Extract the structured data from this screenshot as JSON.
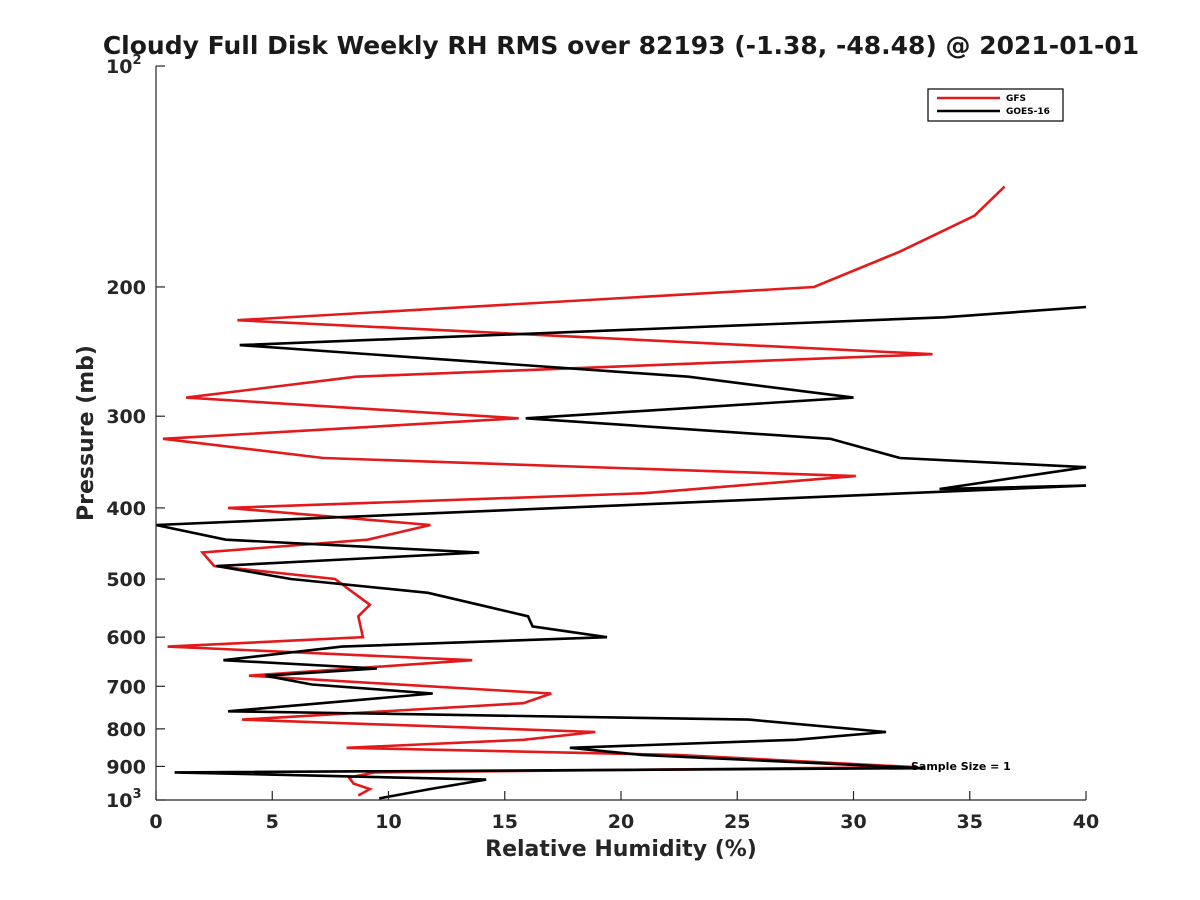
{
  "chart_data": {
    "type": "line",
    "title": "Cloudy Full Disk Weekly RH RMS over 82193 (-1.38, -48.48) @ 2021-01-01",
    "xlabel": "Relative Humidity (%)",
    "ylabel": "Pressure (mb)",
    "xlim": [
      0,
      40
    ],
    "ylim": [
      100,
      1000
    ],
    "y_scale": "log",
    "y_reversed": true,
    "x_ticks": [
      0,
      5,
      10,
      15,
      20,
      25,
      30,
      35,
      40
    ],
    "y_ticks": [
      {
        "value": 100,
        "label": "10",
        "sup": "2"
      },
      {
        "value": 200,
        "label": "200",
        "sup": ""
      },
      {
        "value": 300,
        "label": "300",
        "sup": ""
      },
      {
        "value": 400,
        "label": "400",
        "sup": ""
      },
      {
        "value": 500,
        "label": "500",
        "sup": ""
      },
      {
        "value": 600,
        "label": "600",
        "sup": ""
      },
      {
        "value": 700,
        "label": "700",
        "sup": ""
      },
      {
        "value": 800,
        "label": "800",
        "sup": ""
      },
      {
        "value": 900,
        "label": "900",
        "sup": ""
      },
      {
        "value": 1000,
        "label": "10",
        "sup": "3"
      }
    ],
    "grid": false,
    "legend_position": "top-right",
    "annotation": "Sample Size = 1",
    "series": [
      {
        "name": "GFS",
        "color": "#e31a1c",
        "points": [
          [
            36.5,
            146
          ],
          [
            35.2,
            160
          ],
          [
            32,
            179
          ],
          [
            28.3,
            200
          ],
          [
            3.5,
            222
          ],
          [
            33.4,
            247
          ],
          [
            8.6,
            265
          ],
          [
            1.3,
            283
          ],
          [
            15.6,
            302
          ],
          [
            0.3,
            322
          ],
          [
            7.2,
            342
          ],
          [
            30.1,
            362
          ],
          [
            21,
            382
          ],
          [
            3.1,
            400
          ],
          [
            11.8,
            422
          ],
          [
            9.1,
            442
          ],
          [
            2,
            460
          ],
          [
            2.5,
            480
          ],
          [
            7.7,
            500
          ],
          [
            8.5,
            522
          ],
          [
            9.2,
            542
          ],
          [
            8.7,
            562
          ],
          [
            8.9,
            600
          ],
          [
            0.5,
            618
          ],
          [
            13.6,
            645
          ],
          [
            4,
            677
          ],
          [
            17,
            716
          ],
          [
            15.8,
            738
          ],
          [
            3.7,
            777
          ],
          [
            18.9,
            808
          ],
          [
            15.8,
            828
          ],
          [
            8.2,
            849
          ],
          [
            22.4,
            868
          ],
          [
            32.6,
            902
          ],
          [
            9.4,
            917
          ],
          [
            8.3,
            932
          ],
          [
            8.5,
            950
          ],
          [
            9.2,
            966
          ],
          [
            8.7,
            986
          ]
        ]
      },
      {
        "name": "GOES-16",
        "color": "#000000",
        "points": [
          [
            40,
            213
          ],
          [
            33.9,
            220
          ],
          [
            3.6,
            240
          ],
          [
            22.9,
            265
          ],
          [
            30,
            283
          ],
          [
            15.9,
            302
          ],
          [
            29,
            322
          ],
          [
            32,
            342
          ],
          [
            40,
            352
          ],
          [
            33.7,
            377
          ],
          [
            40,
            373
          ],
          [
            0,
            422
          ],
          [
            3,
            442
          ],
          [
            13.9,
            460
          ],
          [
            2.6,
            480
          ],
          [
            5.8,
            500
          ],
          [
            11.7,
            522
          ],
          [
            13.9,
            542
          ],
          [
            16,
            562
          ],
          [
            16.2,
            580
          ],
          [
            19.4,
            600
          ],
          [
            8,
            618
          ],
          [
            2.9,
            645
          ],
          [
            9.5,
            662
          ],
          [
            4.7,
            677
          ],
          [
            6.7,
            696
          ],
          [
            11.9,
            716
          ],
          [
            3.1,
            757
          ],
          [
            25.5,
            777
          ],
          [
            31.4,
            808
          ],
          [
            27.5,
            828
          ],
          [
            17.8,
            849
          ],
          [
            20.9,
            868
          ],
          [
            33,
            905
          ],
          [
            0.8,
            917
          ],
          [
            14.2,
            938
          ],
          [
            11.8,
            966
          ],
          [
            9.6,
            995
          ]
        ]
      }
    ]
  }
}
